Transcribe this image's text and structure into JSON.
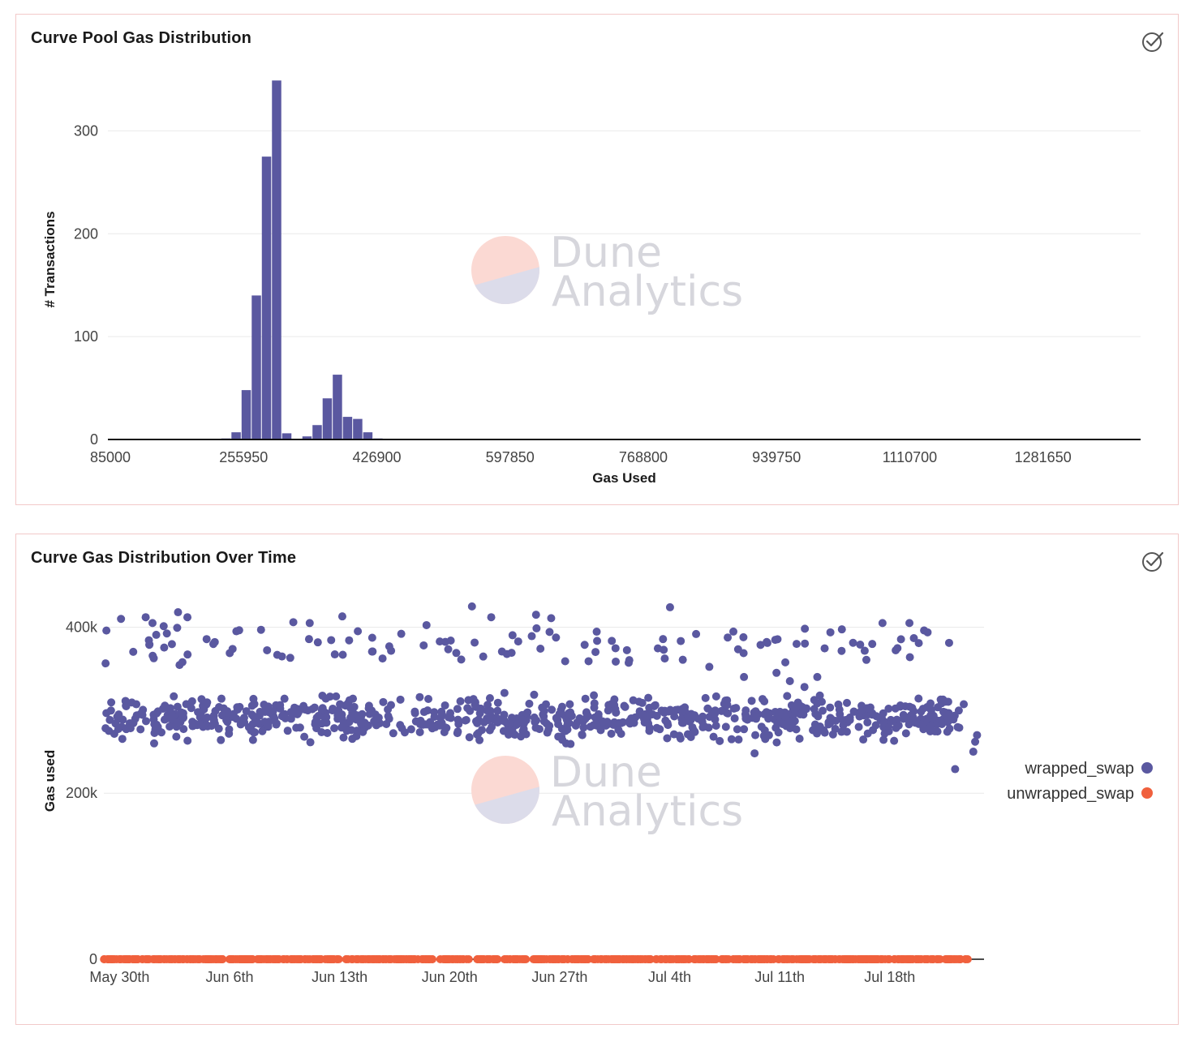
{
  "colors": {
    "primary": "#5a58a0",
    "secondary": "#f0603d",
    "grid": "#e9e9e9",
    "axis": "#111111"
  },
  "icons": {
    "status": "check-circle-icon"
  },
  "watermark": {
    "line1": "Dune",
    "line2": "Analytics"
  },
  "charts": [
    {
      "title": "Curve Pool Gas Distribution",
      "chart_data": {
        "type": "bar",
        "xlabel": "Gas Used",
        "ylabel": "# Transactions",
        "xlim": [
          85000,
          1410000
        ],
        "ylim": [
          0,
          350
        ],
        "x_ticks": [
          85000,
          255950,
          426900,
          597850,
          768800,
          939750,
          1110700,
          1281650
        ],
        "x_tick_labels": [
          "85000",
          "255950",
          "426900",
          "597850",
          "768800",
          "939750",
          "1110700",
          "1281650"
        ],
        "y_ticks": [
          0,
          100,
          200,
          300
        ],
        "y_tick_labels": [
          "0",
          "100",
          "200",
          "300"
        ],
        "bin_width": 13000,
        "bins": [
          {
            "x": 230000,
            "value": 1
          },
          {
            "x": 243000,
            "value": 7
          },
          {
            "x": 256000,
            "value": 48
          },
          {
            "x": 269000,
            "value": 140
          },
          {
            "x": 282000,
            "value": 275
          },
          {
            "x": 295000,
            "value": 349
          },
          {
            "x": 308000,
            "value": 6
          },
          {
            "x": 321000,
            "value": 0
          },
          {
            "x": 334000,
            "value": 3
          },
          {
            "x": 347000,
            "value": 14
          },
          {
            "x": 360000,
            "value": 40
          },
          {
            "x": 373000,
            "value": 63
          },
          {
            "x": 386000,
            "value": 22
          },
          {
            "x": 399000,
            "value": 20
          },
          {
            "x": 412000,
            "value": 7
          },
          {
            "x": 425000,
            "value": 1
          }
        ],
        "grid": true,
        "legend": "none"
      }
    },
    {
      "title": "Curve Gas Distribution Over Time",
      "chart_data": {
        "type": "scatter",
        "xlabel": "",
        "ylabel": "Gas used",
        "xlim": [
          "2021-05-29",
          "2021-07-24"
        ],
        "ylim": [
          0,
          420000
        ],
        "x_ticks": [
          "2021-05-30",
          "2021-06-06",
          "2021-06-13",
          "2021-06-20",
          "2021-06-27",
          "2021-07-04",
          "2021-07-11",
          "2021-07-18"
        ],
        "x_tick_labels": [
          "May 30th",
          "Jun 6th",
          "Jun 13th",
          "Jun 20th",
          "Jun 27th",
          "Jul 4th",
          "Jul 11th",
          "Jul 18th"
        ],
        "y_ticks": [
          0,
          200000,
          400000
        ],
        "y_tick_labels": [
          "0",
          "200k",
          "400k"
        ],
        "legend": "right",
        "grid": true,
        "series": [
          {
            "name": "wrapped_swap",
            "bands": [
              {
                "from": "2021-05-29",
                "to": "2021-07-23",
                "mean": 290000,
                "spread": 17000,
                "points_per_day": 14
              },
              {
                "from": "2021-05-29",
                "to": "2021-07-22",
                "mean": 378000,
                "spread": 18000,
                "points_per_day": 2.2
              }
            ],
            "points": [
              [
                "2021-05-30",
                410000
              ],
              [
                "2021-05-31",
                412000
              ],
              [
                "2021-06-01",
                405000
              ],
              [
                "2021-06-02",
                418000
              ],
              [
                "2021-06-03",
                412000
              ],
              [
                "2021-06-13",
                413000
              ],
              [
                "2021-06-21",
                425000
              ],
              [
                "2021-06-22",
                412000
              ],
              [
                "2021-06-25",
                415000
              ],
              [
                "2021-07-04",
                424000
              ],
              [
                "2021-07-08",
                340000
              ],
              [
                "2021-07-10",
                345000
              ],
              [
                "2021-07-11",
                335000
              ],
              [
                "2021-07-12",
                328000
              ],
              [
                "2021-07-13",
                340000
              ],
              [
                "2021-07-17",
                405000
              ],
              [
                "2021-07-19",
                405000
              ],
              [
                "2021-07-23",
                262000
              ],
              [
                "2021-07-23",
                250000
              ],
              [
                "2021-07-22",
                229000
              ],
              [
                "2021-07-23",
                270000
              ],
              [
                "2021-07-09",
                248000
              ],
              [
                "2021-06-01",
                260000
              ],
              [
                "2021-06-10",
                268000
              ]
            ]
          },
          {
            "name": "unwrapped_swap",
            "bands": [
              {
                "from": "2021-05-29",
                "to": "2021-07-23",
                "mean": 0,
                "spread": 0,
                "points_per_day": 14
              }
            ],
            "points": []
          }
        ]
      }
    }
  ]
}
